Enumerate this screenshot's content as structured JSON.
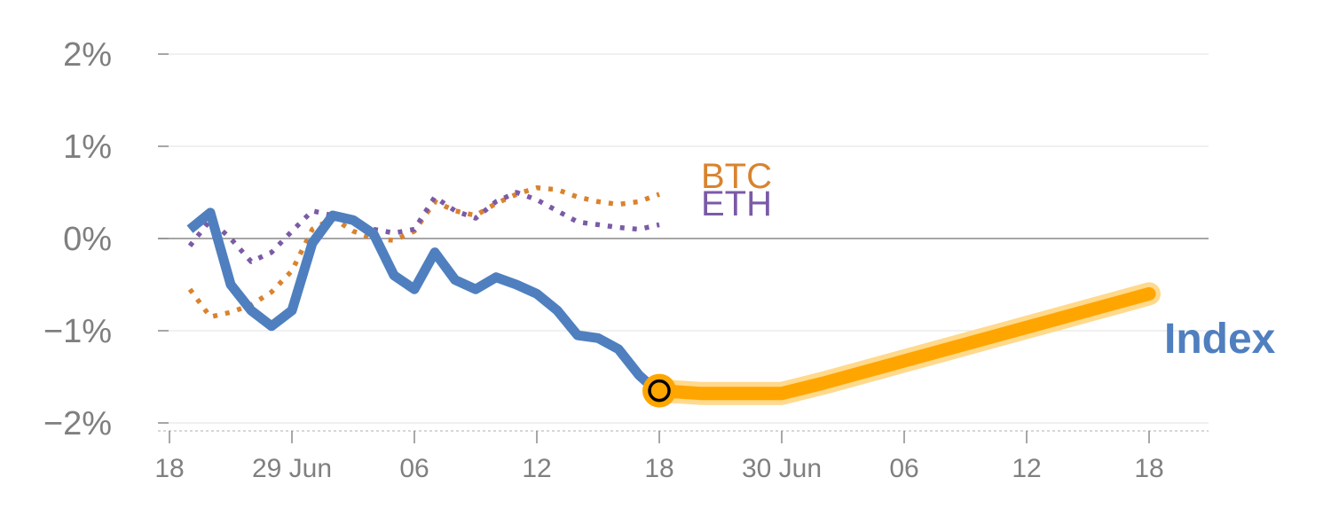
{
  "chart_data": {
    "type": "line",
    "title": "",
    "xlabel": "",
    "ylabel": "",
    "ylim": [
      -2.0,
      2.0
    ],
    "y_ticks": [
      {
        "value": 2,
        "label": "2%"
      },
      {
        "value": 1,
        "label": "1%"
      },
      {
        "value": 0,
        "label": "0%"
      },
      {
        "value": -1,
        "label": "−1%"
      },
      {
        "value": -2,
        "label": "−2%"
      }
    ],
    "x_ticks": [
      {
        "day": 0,
        "label": "18"
      },
      {
        "day": 6,
        "label": "29 Jun"
      },
      {
        "day": 12,
        "label": "06"
      },
      {
        "day": 18,
        "label": "12"
      },
      {
        "day": 24,
        "label": "18"
      },
      {
        "day": 30,
        "label": "30 Jun"
      },
      {
        "day": 36,
        "label": "06"
      },
      {
        "day": 42,
        "label": "12"
      },
      {
        "day": 48,
        "label": "18"
      }
    ],
    "series": [
      {
        "name": "BTC",
        "label": "BTC",
        "color": "#d9832e",
        "style": "dotted",
        "points": [
          [
            1,
            -0.55
          ],
          [
            2,
            -0.85
          ],
          [
            3,
            -0.8
          ],
          [
            4,
            -0.72
          ],
          [
            5,
            -0.58
          ],
          [
            6,
            -0.35
          ],
          [
            7,
            0.1
          ],
          [
            8,
            0.22
          ],
          [
            9,
            0.08
          ],
          [
            10,
            0.0
          ],
          [
            11,
            -0.02
          ],
          [
            12,
            0.08
          ],
          [
            13,
            0.4
          ],
          [
            14,
            0.3
          ],
          [
            15,
            0.25
          ],
          [
            16,
            0.38
          ],
          [
            17,
            0.48
          ],
          [
            18,
            0.55
          ],
          [
            19,
            0.53
          ],
          [
            20,
            0.45
          ],
          [
            21,
            0.4
          ],
          [
            22,
            0.37
          ],
          [
            23,
            0.4
          ],
          [
            24,
            0.48
          ]
        ]
      },
      {
        "name": "ETH",
        "label": "ETH",
        "color": "#7b5aa6",
        "style": "dotted",
        "points": [
          [
            1,
            -0.08
          ],
          [
            2,
            0.2
          ],
          [
            3,
            0.0
          ],
          [
            4,
            -0.25
          ],
          [
            5,
            -0.15
          ],
          [
            6,
            0.08
          ],
          [
            7,
            0.3
          ],
          [
            8,
            0.25
          ],
          [
            9,
            0.2
          ],
          [
            10,
            0.1
          ],
          [
            11,
            0.06
          ],
          [
            12,
            0.1
          ],
          [
            13,
            0.45
          ],
          [
            14,
            0.3
          ],
          [
            15,
            0.22
          ],
          [
            16,
            0.4
          ],
          [
            17,
            0.5
          ],
          [
            18,
            0.42
          ],
          [
            19,
            0.3
          ],
          [
            20,
            0.18
          ],
          [
            21,
            0.15
          ],
          [
            22,
            0.12
          ],
          [
            23,
            0.1
          ],
          [
            24,
            0.15
          ]
        ]
      },
      {
        "name": "Index",
        "label": "Index",
        "color": "#4f7fbf",
        "style": "solid",
        "points": [
          [
            1,
            0.1
          ],
          [
            2,
            0.28
          ],
          [
            3,
            -0.5
          ],
          [
            4,
            -0.78
          ],
          [
            5,
            -0.95
          ],
          [
            6,
            -0.78
          ],
          [
            7,
            -0.05
          ],
          [
            8,
            0.25
          ],
          [
            9,
            0.2
          ],
          [
            10,
            0.05
          ],
          [
            11,
            -0.4
          ],
          [
            12,
            -0.55
          ],
          [
            13,
            -0.15
          ],
          [
            14,
            -0.45
          ],
          [
            15,
            -0.55
          ],
          [
            16,
            -0.42
          ],
          [
            17,
            -0.5
          ],
          [
            18,
            -0.6
          ],
          [
            19,
            -0.78
          ],
          [
            20,
            -1.05
          ],
          [
            21,
            -1.08
          ],
          [
            22,
            -1.2
          ],
          [
            23,
            -1.48
          ],
          [
            24,
            -1.68
          ]
        ]
      },
      {
        "name": "Index forecast",
        "color": "#ffa500",
        "style": "highlight",
        "points": [
          [
            24,
            -1.65
          ],
          [
            26,
            -1.68
          ],
          [
            27,
            -1.68
          ],
          [
            30,
            -1.68
          ],
          [
            32,
            -1.57
          ],
          [
            48,
            -0.6
          ]
        ]
      }
    ],
    "marker": {
      "day": 24,
      "value": -1.65
    }
  }
}
